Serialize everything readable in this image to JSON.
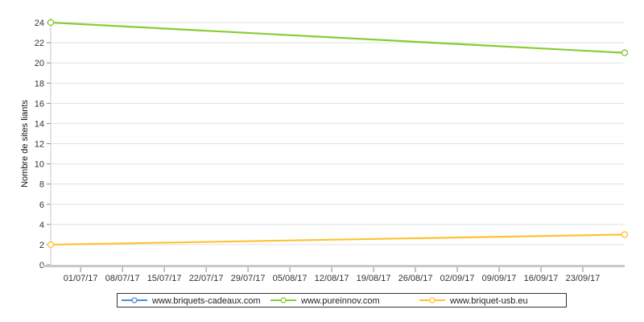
{
  "chart_data": {
    "type": "line",
    "title": "",
    "xlabel": "",
    "ylabel": "Nombre de sites liants",
    "ylim": [
      0,
      24
    ],
    "y_ticks": [
      0,
      2,
      4,
      6,
      8,
      10,
      12,
      14,
      16,
      18,
      20,
      22,
      24
    ],
    "x_range": [
      "2017-06-26",
      "2017-09-30"
    ],
    "x_ticks": [
      {
        "date": "2017-07-01",
        "label": "01/07/17"
      },
      {
        "date": "2017-07-08",
        "label": "08/07/17"
      },
      {
        "date": "2017-07-15",
        "label": "15/07/17"
      },
      {
        "date": "2017-07-22",
        "label": "22/07/17"
      },
      {
        "date": "2017-07-29",
        "label": "29/07/17"
      },
      {
        "date": "2017-08-05",
        "label": "05/08/17"
      },
      {
        "date": "2017-08-12",
        "label": "12/08/17"
      },
      {
        "date": "2017-08-19",
        "label": "19/08/17"
      },
      {
        "date": "2017-08-26",
        "label": "26/08/17"
      },
      {
        "date": "2017-09-02",
        "label": "02/09/17"
      },
      {
        "date": "2017-09-09",
        "label": "09/09/17"
      },
      {
        "date": "2017-09-16",
        "label": "16/09/17"
      },
      {
        "date": "2017-09-23",
        "label": "23/09/17"
      }
    ],
    "grid": true,
    "legend_position": "bottom-center",
    "series": [
      {
        "name": "www.briquets-cadeaux.com",
        "color": "#4a8fd6",
        "points": []
      },
      {
        "name": "www.pureinnov.com",
        "color": "#88cc33",
        "points": [
          {
            "x": "2017-06-26",
            "y": 24
          },
          {
            "x": "2017-09-30",
            "y": 21
          }
        ]
      },
      {
        "name": "www.briquet-usb.eu",
        "color": "#ffc233",
        "points": [
          {
            "x": "2017-06-26",
            "y": 2
          },
          {
            "x": "2017-09-30",
            "y": 3
          }
        ]
      }
    ]
  }
}
